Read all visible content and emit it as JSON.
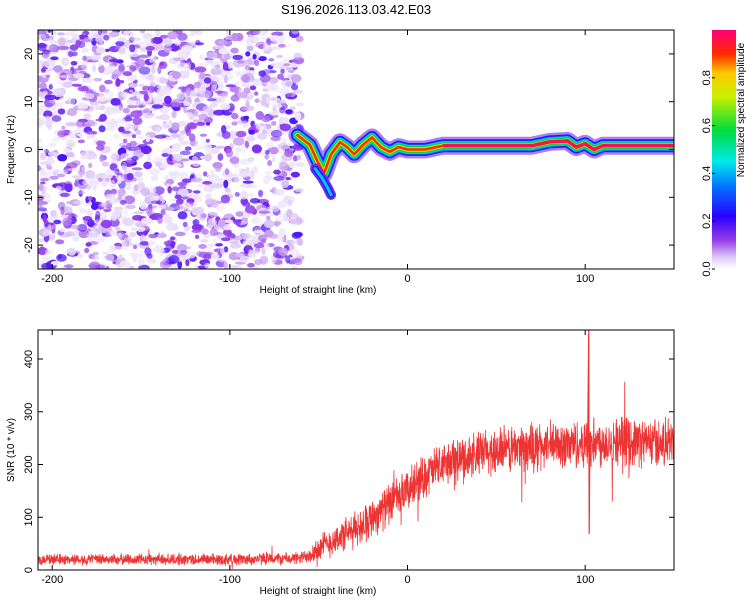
{
  "title": "S196.2026.113.03.42.E03",
  "chart_data": [
    {
      "type": "heatmap",
      "name": "spectrogram",
      "xlabel": "Height of straight line (km)",
      "ylabel": "Frequency (Hz)",
      "xlim": [
        -208,
        150
      ],
      "ylim": [
        -25,
        25
      ],
      "xticks": [
        -200,
        -100,
        0,
        100
      ],
      "yticks": [
        -20,
        -10,
        0,
        10,
        20
      ],
      "colorbar": {
        "label": "Normalized spectral amplitude",
        "range": [
          0.0,
          1.0
        ],
        "ticks": [
          0.0,
          0.2,
          0.4,
          0.6,
          0.8
        ],
        "tick_labels": [
          "0.0",
          "0.2",
          "0.4",
          "0.6",
          "0.8"
        ],
        "colormap": "rainbow (white → violet → blue → cyan → green → yellow → red → magenta)"
      },
      "noise_region": {
        "x_range": [
          -208,
          -60
        ],
        "freq_range": [
          -25,
          25
        ],
        "amplitude_range": [
          0.02,
          0.2
        ]
      },
      "ridge": {
        "x_start": -62,
        "frequency_track": [
          [
            -62,
            3
          ],
          [
            -55,
            1
          ],
          [
            -50,
            -3
          ],
          [
            -47,
            -5
          ],
          [
            -43,
            -1
          ],
          [
            -38,
            1.5
          ],
          [
            -34,
            0.5
          ],
          [
            -30,
            -1
          ],
          [
            -25,
            1
          ],
          [
            -20,
            2.5
          ],
          [
            -15,
            0.5
          ],
          [
            -10,
            -0.5
          ],
          [
            -5,
            0.5
          ],
          [
            0,
            0
          ],
          [
            10,
            0
          ],
          [
            20,
            0.8
          ],
          [
            60,
            0.8
          ],
          [
            70,
            0.8
          ],
          [
            80,
            1.6
          ],
          [
            90,
            1.8
          ],
          [
            95,
            0.5
          ],
          [
            100,
            1.2
          ],
          [
            105,
            0
          ],
          [
            110,
            0.8
          ],
          [
            150,
            0.8
          ]
        ],
        "tail_segment": [
          [
            -52,
            -4
          ],
          [
            -48,
            -6
          ],
          [
            -45,
            -8
          ],
          [
            -43,
            -9.5
          ]
        ],
        "peak_amplitude": 1.0
      }
    },
    {
      "type": "line",
      "name": "snr",
      "xlabel": "Height of straight line (km)",
      "ylabel": "SNR (10 * v/v)",
      "xlim": [
        -208,
        150
      ],
      "ylim": [
        0,
        455
      ],
      "xticks": [
        -200,
        -100,
        0,
        100
      ],
      "yticks": [
        0,
        100,
        200,
        300,
        400
      ],
      "color": "#ee3333",
      "trend": [
        [
          -208,
          20
        ],
        [
          -150,
          20
        ],
        [
          -100,
          20
        ],
        [
          -60,
          22
        ],
        [
          -45,
          50
        ],
        [
          -30,
          75
        ],
        [
          -20,
          100
        ],
        [
          -10,
          125
        ],
        [
          0,
          150
        ],
        [
          10,
          180
        ],
        [
          20,
          200
        ],
        [
          40,
          220
        ],
        [
          60,
          230
        ],
        [
          80,
          235
        ],
        [
          100,
          240
        ],
        [
          120,
          245
        ],
        [
          150,
          240
        ]
      ],
      "noise_amplitude": [
        [
          -208,
          12
        ],
        [
          -60,
          14
        ],
        [
          -50,
          30
        ],
        [
          -20,
          45
        ],
        [
          20,
          50
        ],
        [
          60,
          55
        ],
        [
          150,
          55
        ]
      ],
      "spike": {
        "x": 102,
        "peak": 455,
        "dip": 68
      }
    }
  ]
}
